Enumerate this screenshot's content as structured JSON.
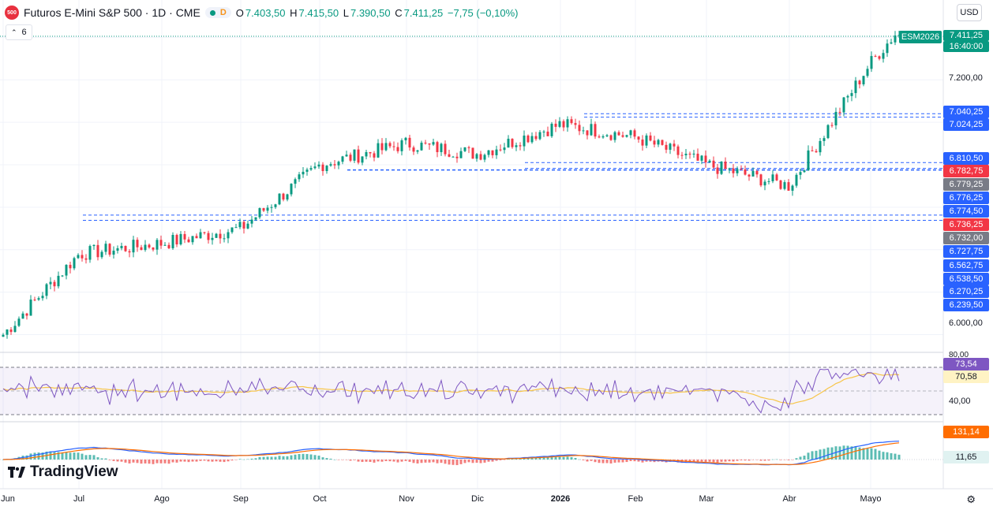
{
  "header": {
    "logo_text": "500",
    "symbol": "Futuros E-Mini S&P 500 · 1D · CME",
    "interval_badge": "D",
    "ohlc": {
      "o_label": "O",
      "o": "7.403,50",
      "h_label": "H",
      "h": "7.415,50",
      "l_label": "L",
      "l": "7.390,50",
      "c_label": "C",
      "c": "7.411,25",
      "change": "−7,75 (−0,10%)"
    },
    "currency": "USD"
  },
  "indicators_toggle": {
    "count": "6"
  },
  "brand": {
    "name": "TradingView"
  },
  "price_axis": {
    "labels": [
      "7.200,00",
      "6.000,00"
    ],
    "ticker_tag": "ESM2026",
    "last_price": "7.411,25",
    "countdown": "16:40:00",
    "level_tags": [
      {
        "text": "7.040,25",
        "color": "#2962ff"
      },
      {
        "text": "7.024,25",
        "color": "#2962ff"
      },
      {
        "text": "6.810,50",
        "color": "#2962ff"
      },
      {
        "text": "6.782,75",
        "color": "#f23645"
      },
      {
        "text": "6.779,25",
        "color": "#787b86"
      },
      {
        "text": "6.776,25",
        "color": "#2962ff"
      },
      {
        "text": "6.774,50",
        "color": "#2962ff"
      },
      {
        "text": "6.736,25",
        "color": "#f23645"
      },
      {
        "text": "6.732,00",
        "color": "#787b86"
      },
      {
        "text": "6.727,75",
        "color": "#2962ff"
      },
      {
        "text": "6.562,75",
        "color": "#2962ff"
      },
      {
        "text": "6.538,50",
        "color": "#2962ff"
      },
      {
        "text": "6.270,25",
        "color": "#2962ff"
      },
      {
        "text": "6.239,50",
        "color": "#2962ff"
      }
    ]
  },
  "rsi": {
    "axis_80": "80,00",
    "axis_40": "40,00",
    "value": "73,54",
    "ma_value": "70,58"
  },
  "macd": {
    "value1": "131,14",
    "value2": "11,65"
  },
  "time_axis": [
    "Jun",
    "Jul",
    "Ago",
    "Sep",
    "Oct",
    "Nov",
    "Dic",
    "2026",
    "Feb",
    "Mar",
    "Abr",
    "Mayo"
  ],
  "colors": {
    "up": "#089981",
    "down": "#f23645",
    "rsi": "#7e57c2",
    "rsi_ma": "#f7c548",
    "macd": "#2962ff",
    "signal": "#ff6d00",
    "level_line": "#2962ff"
  },
  "chart_data": {
    "type": "candlestick",
    "price_scale": [
      5950,
      7420
    ],
    "key_points": [
      {
        "month": "Jun",
        "price": 6000
      },
      {
        "month": "Jul",
        "price": 6380
      },
      {
        "month": "Ago",
        "price": 6430
      },
      {
        "month": "Sep",
        "price": 6500
      },
      {
        "month": "Oct",
        "price": 6800
      },
      {
        "month": "Nov",
        "price": 6900
      },
      {
        "month": "Dic",
        "price": 6850
      },
      {
        "month": "2026",
        "price": 6990
      },
      {
        "month": "Feb",
        "price": 6930
      },
      {
        "month": "Mar",
        "price": 6800
      },
      {
        "month": "Abr",
        "price": 6700
      },
      {
        "month": "Mayo",
        "price": 7280
      }
    ],
    "last_close": 7411.25,
    "h_levels": [
      7040.25,
      7024.25,
      6810.5,
      6782.75,
      6776.25,
      6774.5,
      6562.75,
      6538.5
    ]
  }
}
